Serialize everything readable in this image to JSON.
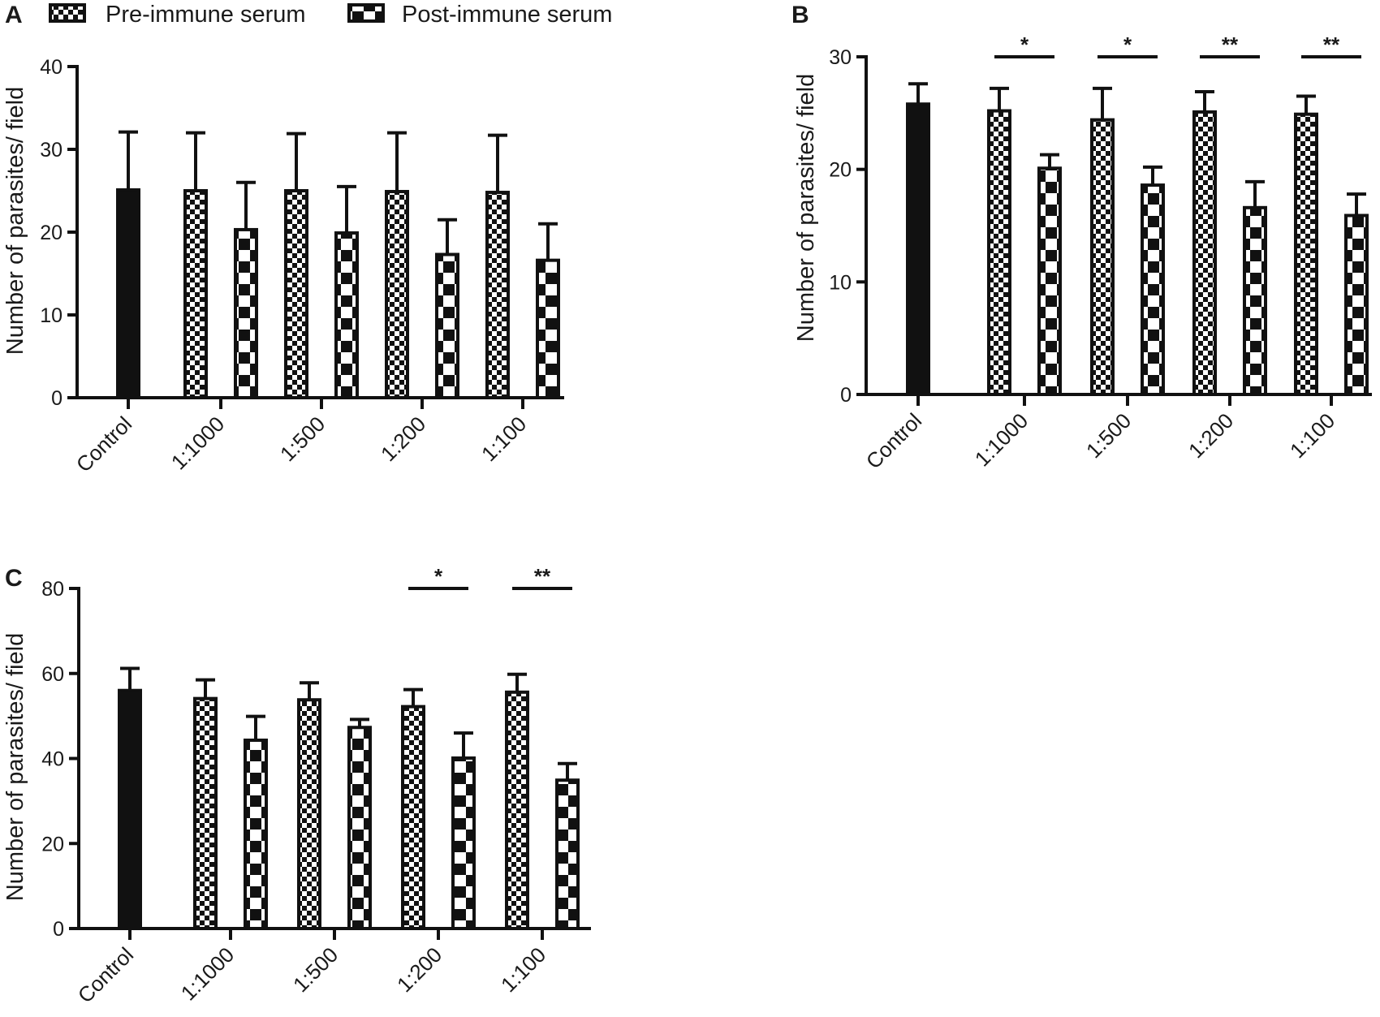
{
  "legend": {
    "items": [
      {
        "label": "Pre-immune serum",
        "pattern": "checker-small"
      },
      {
        "label": "Post-immune serum",
        "pattern": "checker-large"
      }
    ]
  },
  "colors": {
    "ink": "#111111",
    "background": "#ffffff"
  },
  "chart_data": [
    {
      "panel": "A",
      "type": "bar",
      "ylabel": "Number of parasites/ field",
      "ylim": [
        0,
        40
      ],
      "yticks": [
        0,
        10,
        20,
        30,
        40
      ],
      "categories": [
        "Control",
        "1:1000",
        "1:500",
        "1:200",
        "1:100"
      ],
      "series": [
        {
          "name": "Control",
          "values": [
            25.1,
            null,
            null,
            null,
            null
          ],
          "errors": [
            7.0,
            null,
            null,
            null,
            null
          ]
        },
        {
          "name": "Pre-immune serum",
          "values": [
            null,
            25.0,
            25.0,
            24.9,
            24.8
          ],
          "errors": [
            null,
            7.0,
            6.9,
            7.1,
            6.9
          ]
        },
        {
          "name": "Post-immune serum",
          "values": [
            null,
            20.3,
            19.9,
            17.3,
            16.6
          ],
          "errors": [
            null,
            5.7,
            5.6,
            4.2,
            4.4
          ]
        }
      ],
      "significance": []
    },
    {
      "panel": "B",
      "type": "bar",
      "ylabel": "Number of parasites/ field",
      "ylim": [
        0,
        30
      ],
      "yticks": [
        0,
        10,
        20,
        30
      ],
      "categories": [
        "Control",
        "1:1000",
        "1:500",
        "1:200",
        "1:100"
      ],
      "series": [
        {
          "name": "Control",
          "values": [
            25.8,
            null,
            null,
            null,
            null
          ],
          "errors": [
            1.8,
            null,
            null,
            null,
            null
          ]
        },
        {
          "name": "Pre-immune serum",
          "values": [
            null,
            25.2,
            24.4,
            25.1,
            24.9
          ],
          "errors": [
            null,
            2.0,
            2.8,
            1.8,
            1.6
          ]
        },
        {
          "name": "Post-immune serum",
          "values": [
            null,
            20.1,
            18.6,
            16.6,
            15.9
          ],
          "errors": [
            null,
            1.2,
            1.6,
            2.3,
            1.9
          ]
        }
      ],
      "significance": [
        {
          "category": "1:1000",
          "label": "*"
        },
        {
          "category": "1:500",
          "label": "*"
        },
        {
          "category": "1:200",
          "label": "**"
        },
        {
          "category": "1:100",
          "label": "**"
        }
      ]
    },
    {
      "panel": "C",
      "type": "bar",
      "ylabel": "Number of parasites/ field",
      "ylim": [
        0,
        80
      ],
      "yticks": [
        0,
        20,
        40,
        60,
        80
      ],
      "categories": [
        "Control",
        "1:1000",
        "1:500",
        "1:200",
        "1:100"
      ],
      "series": [
        {
          "name": "Control",
          "values": [
            56.0,
            null,
            null,
            null,
            null
          ],
          "errors": [
            5.2,
            null,
            null,
            null,
            null
          ]
        },
        {
          "name": "Pre-immune serum",
          "values": [
            null,
            54.1,
            53.8,
            52.2,
            55.6
          ],
          "errors": [
            null,
            4.4,
            4.0,
            4.0,
            4.2
          ]
        },
        {
          "name": "Post-immune serum",
          "values": [
            null,
            44.3,
            47.3,
            40.1,
            34.9
          ],
          "errors": [
            null,
            5.6,
            1.9,
            5.9,
            3.9
          ]
        }
      ],
      "significance": [
        {
          "category": "1:200",
          "label": "*"
        },
        {
          "category": "1:100",
          "label": "**"
        }
      ]
    }
  ]
}
